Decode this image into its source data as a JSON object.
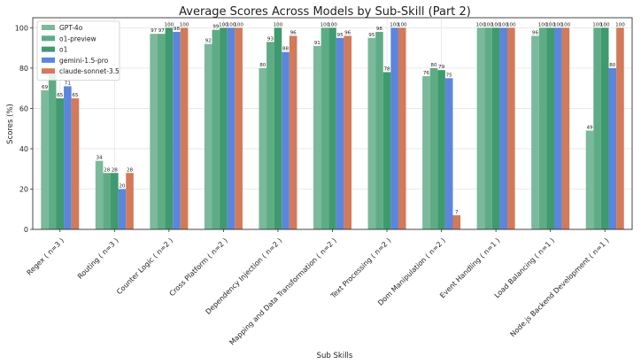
{
  "chart_data": {
    "type": "bar",
    "title": "Average Scores Across Models by Sub-Skill (Part 2)",
    "xlabel": "Sub Skills",
    "ylabel": "Scores (%)",
    "ylim": [
      0,
      105
    ],
    "yticks": [
      0,
      20,
      40,
      60,
      80,
      100
    ],
    "grid": true,
    "legend_position": "top-left",
    "categories": [
      "Regex ( n=3 )",
      "Routing ( n=3 )",
      "Counter Logic ( n=2 )",
      "Cross Platform ( n=2 )",
      "Dependency Injection ( n=2 )",
      "Mapping and Data Transformation ( n=2 )",
      "Text Processing ( n=2 )",
      "Dom Manipulation ( n=2 )",
      "Event Handling ( n=1 )",
      "Load Balancing ( n=1 )",
      "Node.js Backend Development ( n=1 )"
    ],
    "series": [
      {
        "name": "GPT-4o",
        "color": "#7ab99b",
        "values": [
          69,
          34,
          97,
          92,
          80,
          91,
          95,
          76,
          100,
          96,
          49
        ]
      },
      {
        "name": "o1-preview",
        "color": "#5eac85",
        "values": [
          77,
          28,
          97,
          99,
          93,
          100,
          98,
          80,
          100,
          100,
          100
        ]
      },
      {
        "name": "o1",
        "color": "#3f9a6f",
        "values": [
          65,
          28,
          100,
          100,
          100,
          100,
          78,
          79,
          100,
          100,
          100
        ]
      },
      {
        "name": "gemini-1.5-pro",
        "color": "#5b86db",
        "values": [
          71,
          20,
          98,
          100,
          88,
          95,
          100,
          75,
          100,
          100,
          80
        ]
      },
      {
        "name": "claude-sonnet-3.5",
        "color": "#d27a5a",
        "values": [
          65,
          28,
          100,
          100,
          96,
          96,
          100,
          7,
          100,
          100,
          100
        ]
      }
    ]
  }
}
